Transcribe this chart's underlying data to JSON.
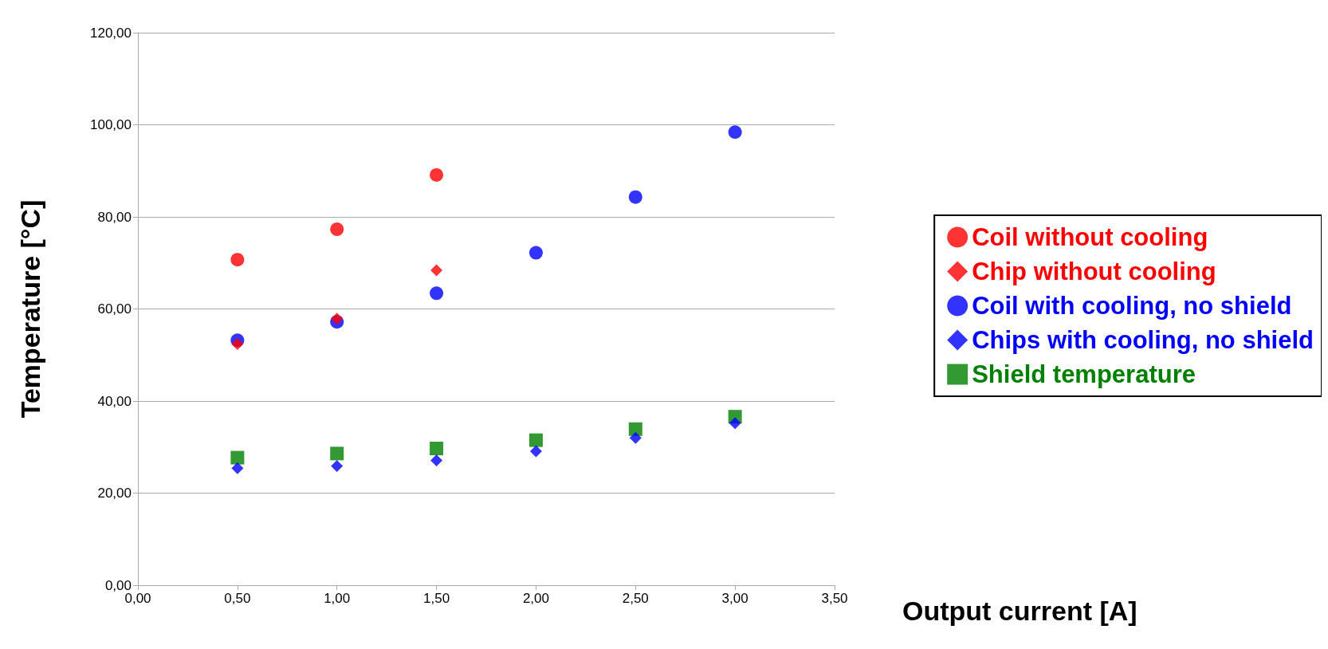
{
  "chart_data": {
    "type": "scatter",
    "ylabel": "Temperature [°C]",
    "xlabel": "Output current [A]",
    "x": [
      0.5,
      1.0,
      1.5,
      2.0,
      2.5,
      3.0
    ],
    "series": [
      {
        "name": "Coil without cooling",
        "color": "#ff0000",
        "marker": "circle",
        "values": [
          70.7,
          77.3,
          89.1,
          null,
          null,
          null
        ]
      },
      {
        "name": "Chip without cooling",
        "color": "#ff0000",
        "marker": "diamond",
        "values": [
          52.4,
          57.9,
          68.4,
          null,
          null,
          null
        ]
      },
      {
        "name": "Coil with cooling, no shield",
        "color": "#0000ff",
        "marker": "circle",
        "values": [
          53.2,
          57.2,
          63.4,
          72.2,
          84.3,
          98.4
        ]
      },
      {
        "name": "Chips with cooling, no shield",
        "color": "#0000ff",
        "marker": "diamond",
        "values": [
          25.4,
          25.9,
          27.1,
          29.1,
          32.0,
          35.2
        ]
      },
      {
        "name": "Shield temperature",
        "color": "#008000",
        "marker": "square",
        "values": [
          27.7,
          28.6,
          29.7,
          31.5,
          33.9,
          36.6
        ]
      }
    ],
    "xlim": [
      0,
      3.5
    ],
    "xticks": [
      {
        "value": 0,
        "label": "0,00"
      },
      {
        "value": 0.5,
        "label": "0,50"
      },
      {
        "value": 1,
        "label": "1,00"
      },
      {
        "value": 1.5,
        "label": "1,50"
      },
      {
        "value": 2,
        "label": "2,00"
      },
      {
        "value": 2.5,
        "label": "2,50"
      },
      {
        "value": 3,
        "label": "3,00"
      },
      {
        "value": 3.5,
        "label": "3,50"
      }
    ],
    "ylim": [
      0,
      120
    ],
    "yticks": [
      {
        "value": 0,
        "label": "0,00"
      },
      {
        "value": 20,
        "label": "20,00"
      },
      {
        "value": 40,
        "label": "40,00"
      },
      {
        "value": 60,
        "label": "60,00"
      },
      {
        "value": 80,
        "label": "80,00"
      },
      {
        "value": 100,
        "label": "100,00"
      },
      {
        "value": 120,
        "label": "120,00"
      }
    ],
    "grid": "y",
    "legend": "right"
  }
}
